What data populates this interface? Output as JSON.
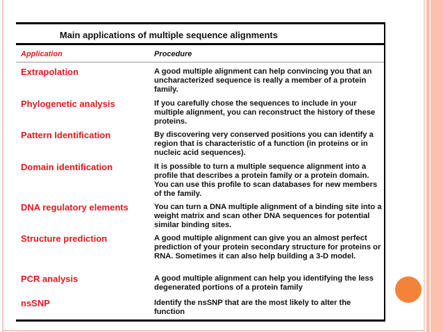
{
  "title": "Main applications of multiple sequence alignments",
  "headers": {
    "application": "Application",
    "procedure": "Procedure"
  },
  "rows": [
    {
      "application": "Extrapolation",
      "procedure": "A good multiple alignment can help convincing you that an uncharacterized sequence is really a member of a protein family."
    },
    {
      "application": "Phylogenetic analysis",
      "procedure": "If you carefully chose the sequences to include in your multiple alignment, you can reconstruct the history of these proteins."
    },
    {
      "application": "Pattern Identification",
      "procedure": "By discovering very conserved positions you can identify a region that is characteristic of a function (in proteins or in nucleic acid sequences)."
    },
    {
      "application": "Domain identification",
      "procedure": "It is possible to turn a multiple sequence alignment into a profile that describes a protein family or a protein domain. You can use this profile to scan databases for new members of the family."
    },
    {
      "application": "DNA regulatory elements",
      "procedure": "You can turn a DNA multiple alignment of a binding site into a weight matrix and scan other DNA sequences for potential similar binding sites."
    },
    {
      "application": "Structure prediction",
      "procedure": "A good multiple alignment can give you an almost perfect prediction of your protein secondary structure for proteins or RNA. Sometimes it can also help building a 3-D model."
    },
    {
      "application": "PCR analysis",
      "procedure": "A good multiple alignment can help you identifying the less degenerated portions of a protein family"
    },
    {
      "application": "nsSNP",
      "procedure": "Identify the nsSNP that are the most likely to alter the function"
    }
  ],
  "colors": {
    "application": "#e3171d",
    "accent_circle": "#f5823a",
    "stripe": "#fdbfae"
  }
}
